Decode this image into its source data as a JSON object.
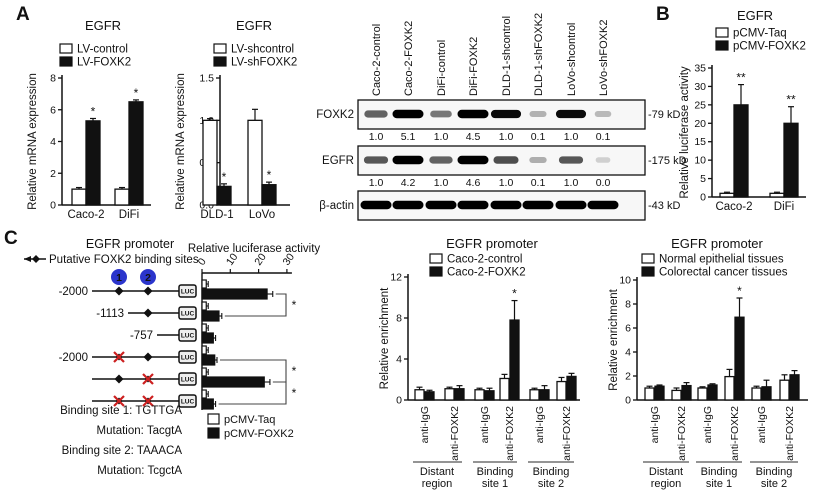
{
  "panel_labels": {
    "a": "A",
    "b": "B",
    "c": "C"
  },
  "colors": {
    "bar_white": "#ffffff",
    "bar_black": "#111111",
    "site_circle": "#2b35cc",
    "mutation_x": "#cc2020",
    "axis": "#111111"
  },
  "chart_data": [
    {
      "id": "egfr-mrna-overexpression",
      "type": "bar",
      "title": "EGFR",
      "ylabel": "Relative mRNA expression",
      "ylim": [
        0,
        8
      ],
      "yticks": [
        "0",
        "2",
        "4",
        "6",
        "8"
      ],
      "categories": [
        "Caco-2",
        "DiFi"
      ],
      "series": [
        {
          "name": "LV-control",
          "fill": "#ffffff",
          "values": [
            1.0,
            1.0
          ],
          "errors": [
            0.1,
            0.1
          ],
          "sig": [
            "",
            ""
          ]
        },
        {
          "name": "LV-FOXK2",
          "fill": "#111111",
          "values": [
            5.3,
            6.5
          ],
          "errors": [
            0.15,
            0.12
          ],
          "sig": [
            "*",
            "*"
          ]
        }
      ]
    },
    {
      "id": "egfr-mrna-knockdown",
      "type": "bar",
      "title": "EGFR",
      "ylabel": "Relative mRNA expression",
      "ylim": [
        0,
        1.5
      ],
      "yticks": [
        "0.0",
        "0.5",
        "1.0",
        "1.5"
      ],
      "categories": [
        "DLD-1",
        "LoVo"
      ],
      "series": [
        {
          "name": "LV-shcontrol",
          "fill": "#ffffff",
          "values": [
            1.0,
            1.0
          ],
          "errors": [
            0.02,
            0.13
          ],
          "sig": [
            "",
            ""
          ]
        },
        {
          "name": "LV-shFOXK2",
          "fill": "#111111",
          "values": [
            0.22,
            0.24
          ],
          "errors": [
            0.03,
            0.03
          ],
          "sig": [
            "*",
            "*"
          ]
        }
      ]
    },
    {
      "id": "egfr-luciferase",
      "type": "bar",
      "title": "EGFR",
      "ylabel": "Relative luciferase activity",
      "ylim": [
        0,
        35
      ],
      "yticks": [
        "0",
        "5",
        "10",
        "15",
        "20",
        "25",
        "30",
        "35"
      ],
      "categories": [
        "Caco-2",
        "DiFi"
      ],
      "series": [
        {
          "name": "pCMV-Taq",
          "fill": "#ffffff",
          "values": [
            1.0,
            1.0
          ],
          "errors": [
            0.3,
            0.3
          ],
          "sig": [
            "",
            ""
          ]
        },
        {
          "name": "pCMV-FOXK2",
          "fill": "#111111",
          "values": [
            25,
            20
          ],
          "errors": [
            5.5,
            4.5
          ],
          "sig": [
            "**",
            "**"
          ]
        }
      ]
    },
    {
      "id": "promoter-luciferase",
      "type": "hbar",
      "title": "Relative luciferase activity",
      "xlim": [
        0,
        30
      ],
      "xticks": [
        "0",
        "10",
        "20",
        "30"
      ],
      "series": [
        {
          "name": "pCMV-Taq",
          "fill": "#ffffff",
          "values": [
            1.5,
            1.5,
            1.5,
            1.5,
            1.5,
            1.5
          ],
          "errors": [
            0.7,
            0.7,
            0.7,
            0.7,
            0.7,
            0.7
          ]
        },
        {
          "name": "pCMV-FOXK2",
          "fill": "#111111",
          "values": [
            23,
            6,
            4,
            4.5,
            22,
            4
          ],
          "errors": [
            2,
            1,
            0.8,
            0.8,
            2,
            0.8
          ]
        }
      ],
      "sig_brackets": [
        {
          "from": 0,
          "to": 1,
          "label": "*"
        },
        {
          "from": 3,
          "to": 4,
          "label": "*"
        },
        {
          "from": 4,
          "to": 5,
          "label": "*"
        }
      ]
    },
    {
      "id": "chip-caco2",
      "type": "bar",
      "title": "EGFR promoter",
      "ylabel": "Relative enrichment",
      "ylim": [
        0,
        12
      ],
      "yticks": [
        "0",
        "4",
        "8",
        "12"
      ],
      "xlabels": [
        "anti-IgG",
        "anti-FOXK2",
        "anti-IgG",
        "anti-FOXK2",
        "anti-IgG",
        "anti-FOXK2"
      ],
      "groups": [
        {
          "label_lines": [
            "Distant",
            "region"
          ]
        },
        {
          "label_lines": [
            "Binding",
            "site 1"
          ]
        },
        {
          "label_lines": [
            "Binding",
            "site 2"
          ]
        }
      ],
      "series": [
        {
          "name": "Caco-2-control",
          "fill": "#ffffff",
          "values": [
            1.0,
            1.1,
            1.0,
            2.1,
            1.0,
            1.8
          ],
          "errors": [
            0.25,
            0.15,
            0.15,
            0.4,
            0.15,
            0.4
          ],
          "sig": [
            "",
            "",
            "",
            "",
            "",
            ""
          ]
        },
        {
          "name": "Caco-2-FOXK2",
          "fill": "#111111",
          "values": [
            0.8,
            1.1,
            0.9,
            7.8,
            1.0,
            2.3
          ],
          "errors": [
            0.15,
            0.3,
            0.25,
            1.9,
            0.4,
            0.3
          ],
          "sig": [
            "",
            "",
            "",
            "*",
            "",
            ""
          ]
        }
      ]
    },
    {
      "id": "chip-tissues",
      "type": "bar",
      "title": "EGFR promoter",
      "ylabel": "Relative enrichment",
      "ylim": [
        0,
        10
      ],
      "yticks": [
        "0",
        "2",
        "4",
        "6",
        "8",
        "10"
      ],
      "xlabels": [
        "anti-IgG",
        "anti-FOXK2",
        "anti-IgG",
        "anti-FOXK2",
        "anti-IgG",
        "anti-FOXK2"
      ],
      "groups": [
        {
          "label_lines": [
            "Distant",
            "region"
          ]
        },
        {
          "label_lines": [
            "Binding",
            "site 1"
          ]
        },
        {
          "label_lines": [
            "Binding",
            "site 2"
          ]
        }
      ],
      "series": [
        {
          "name": "Normal epithelial tissues",
          "fill": "#ffffff",
          "values": [
            1.0,
            0.8,
            1.0,
            1.95,
            1.0,
            1.65
          ],
          "errors": [
            0.15,
            0.2,
            0.1,
            0.6,
            0.15,
            0.45
          ],
          "sig": [
            "",
            "",
            "",
            "",
            "",
            ""
          ]
        },
        {
          "name": "Colorectal cancer tissues",
          "fill": "#111111",
          "values": [
            1.15,
            1.2,
            1.25,
            6.9,
            1.1,
            2.1
          ],
          "errors": [
            0.1,
            0.25,
            0.1,
            1.6,
            0.55,
            0.35
          ],
          "sig": [
            "",
            "",
            "",
            "*",
            "",
            ""
          ]
        }
      ]
    }
  ],
  "western_blot": {
    "lane_labels": [
      "Caco-2-control",
      "Caco-2-FOXK2",
      "DiFi-control",
      "DiFi-FOXK2",
      "DLD-1-shcontrol",
      "DLD-1-shFOXK2",
      "LoVo-shcontrol",
      "LoVo-shFOXK2"
    ],
    "rows": [
      {
        "protein": "FOXK2",
        "marker": "-79 kD",
        "quantification": [
          "1.0",
          "5.1",
          "1.0",
          "4.5",
          "1.0",
          "0.1",
          "1.0",
          "0.1"
        ],
        "band_intensities": [
          0.55,
          1.0,
          0.45,
          1.0,
          0.95,
          0.18,
          0.95,
          0.15
        ]
      },
      {
        "protein": "EGFR",
        "marker": "-175 kD",
        "quantification": [
          "1.0",
          "4.2",
          "1.0",
          "4.6",
          "1.0",
          "0.1",
          "1.0",
          "0.0"
        ],
        "band_intensities": [
          0.6,
          1.0,
          0.55,
          1.0,
          0.65,
          0.2,
          0.6,
          0.04
        ]
      },
      {
        "protein": "β-actin",
        "marker": "-43 kD",
        "quantification": [],
        "band_intensities": [
          1,
          1,
          1,
          1,
          1,
          1,
          1,
          1
        ]
      }
    ]
  },
  "promoter_diagram": {
    "title": "EGFR promoter",
    "sites_legend": "Putative FOXK2 binding sites",
    "site_badges": [
      "1",
      "2"
    ],
    "reporter": "LUC",
    "constructs": [
      {
        "label": "-2000",
        "indent": 0,
        "site1": "diamond",
        "site2": "diamond"
      },
      {
        "label": "-1113",
        "indent": 1,
        "site1": "none",
        "site2": "diamond"
      },
      {
        "label": "-757",
        "indent": 2,
        "site1": "none",
        "site2": "none"
      },
      {
        "label": "-2000",
        "indent": 0,
        "site1": "mut",
        "site2": "diamond"
      },
      {
        "label": "",
        "indent": 0,
        "site1": "diamond",
        "site2": "mut"
      },
      {
        "label": "",
        "indent": 0,
        "site1": "mut",
        "site2": "mut"
      }
    ],
    "sequences": [
      "Binding site 1: TGTTGA",
      "Mutation: TacgtA",
      "Binding site 2: TAAACA",
      "Mutation: TcgctA"
    ]
  }
}
